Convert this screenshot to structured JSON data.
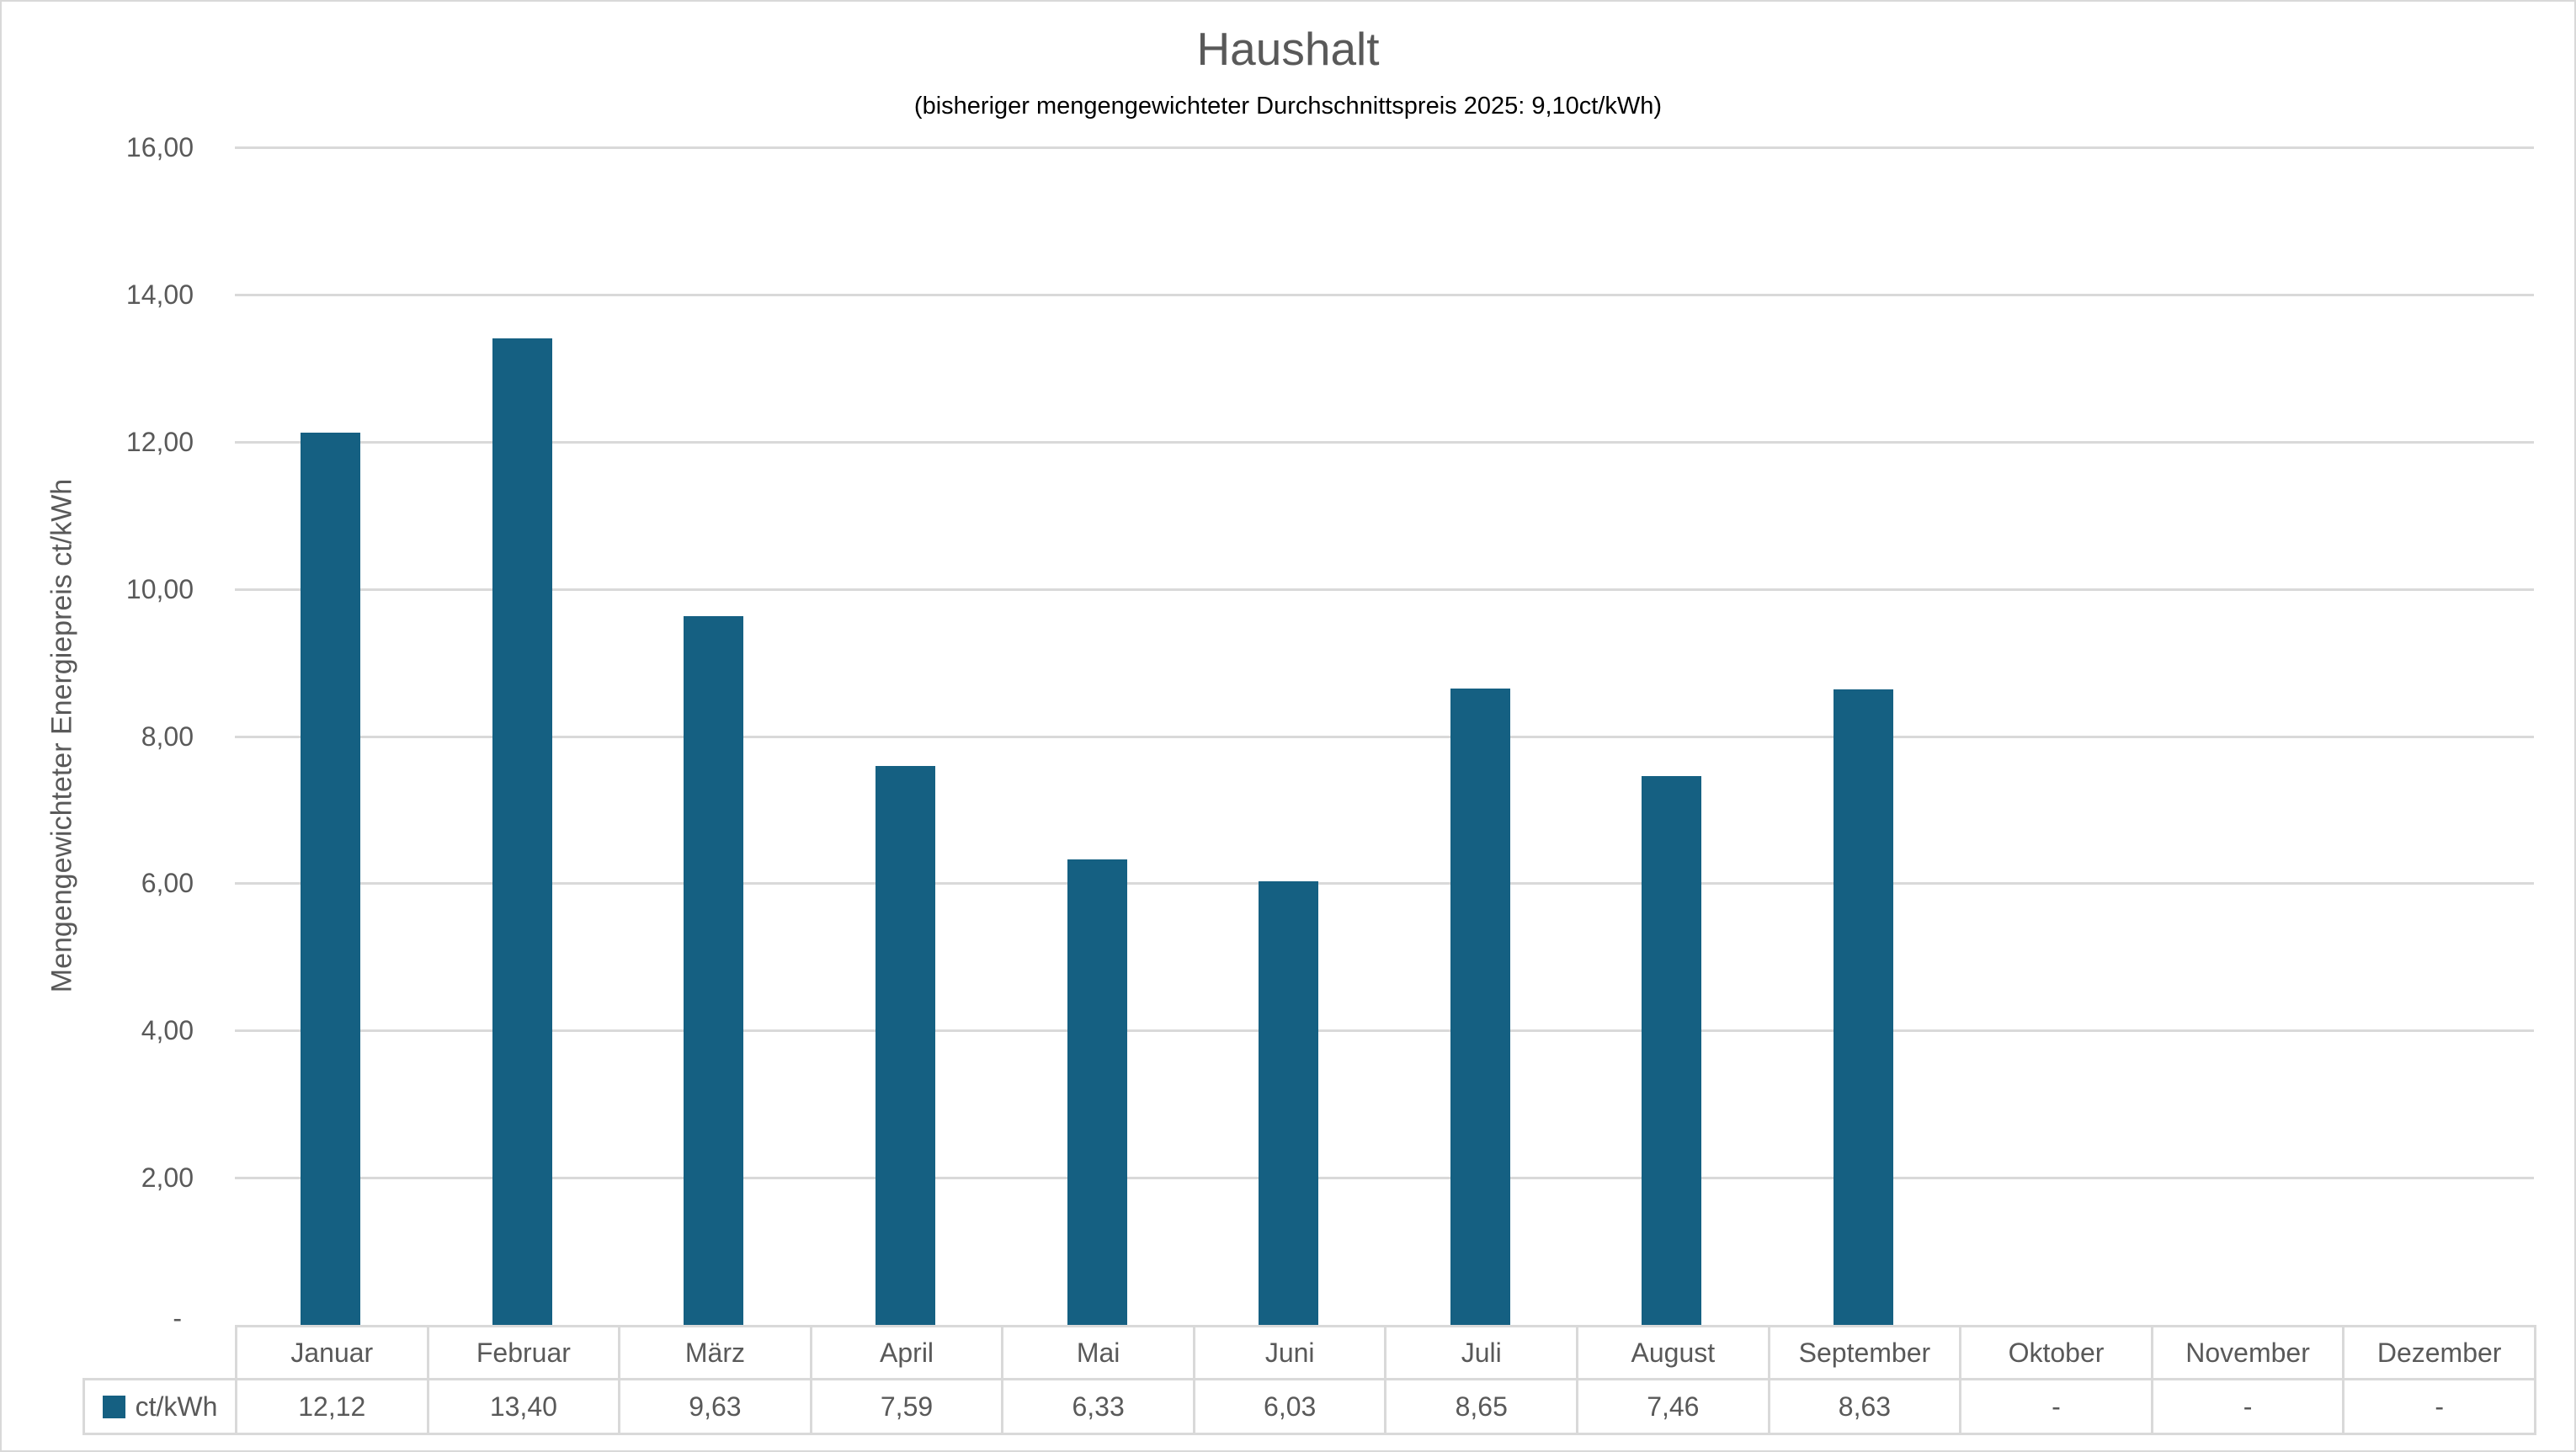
{
  "chart": {
    "title": "Haushalt",
    "subtitle": "(bisheriger mengengewichteter Durchschnittspreis 2025: 9,10ct/kWh)",
    "y_axis_title": "Mengengewichteter Energiepreis ct/kWh",
    "legend_label": "ct/kWh",
    "colors": {
      "bar": "#156082",
      "gridline": "#d9d9d9",
      "axis_text": "#595959",
      "subtitle_text": "#000000",
      "table_border": "#d9d9d9",
      "background": "#ffffff"
    }
  },
  "chart_data": {
    "type": "bar",
    "title": "Haushalt",
    "subtitle": "(bisheriger mengengewichteter Durchschnittspreis 2025: 9,10ct/kWh)",
    "xlabel": "",
    "ylabel": "Mengengewichteter Energiepreis ct/kWh",
    "categories": [
      "Januar",
      "Februar",
      "März",
      "April",
      "Mai",
      "Juni",
      "Juli",
      "August",
      "September",
      "Oktober",
      "November",
      "Dezember"
    ],
    "series": [
      {
        "name": "ct/kWh",
        "values": [
          12.12,
          13.4,
          9.63,
          7.59,
          6.33,
          6.03,
          8.65,
          7.46,
          8.63,
          null,
          null,
          null
        ]
      }
    ],
    "value_labels": [
      "12,12",
      "13,40",
      "9,63",
      "7,59",
      "6,33",
      "6,03",
      "8,65",
      "7,46",
      "8,63",
      "-",
      "-",
      "-"
    ],
    "ylim": [
      0,
      16
    ],
    "ytick_interval": 2,
    "ytick_labels": [
      "-",
      "2,00",
      "4,00",
      "6,00",
      "8,00",
      "10,00",
      "12,00",
      "14,00",
      "16,00"
    ],
    "grid": true,
    "legend_position": "data-table-left"
  }
}
